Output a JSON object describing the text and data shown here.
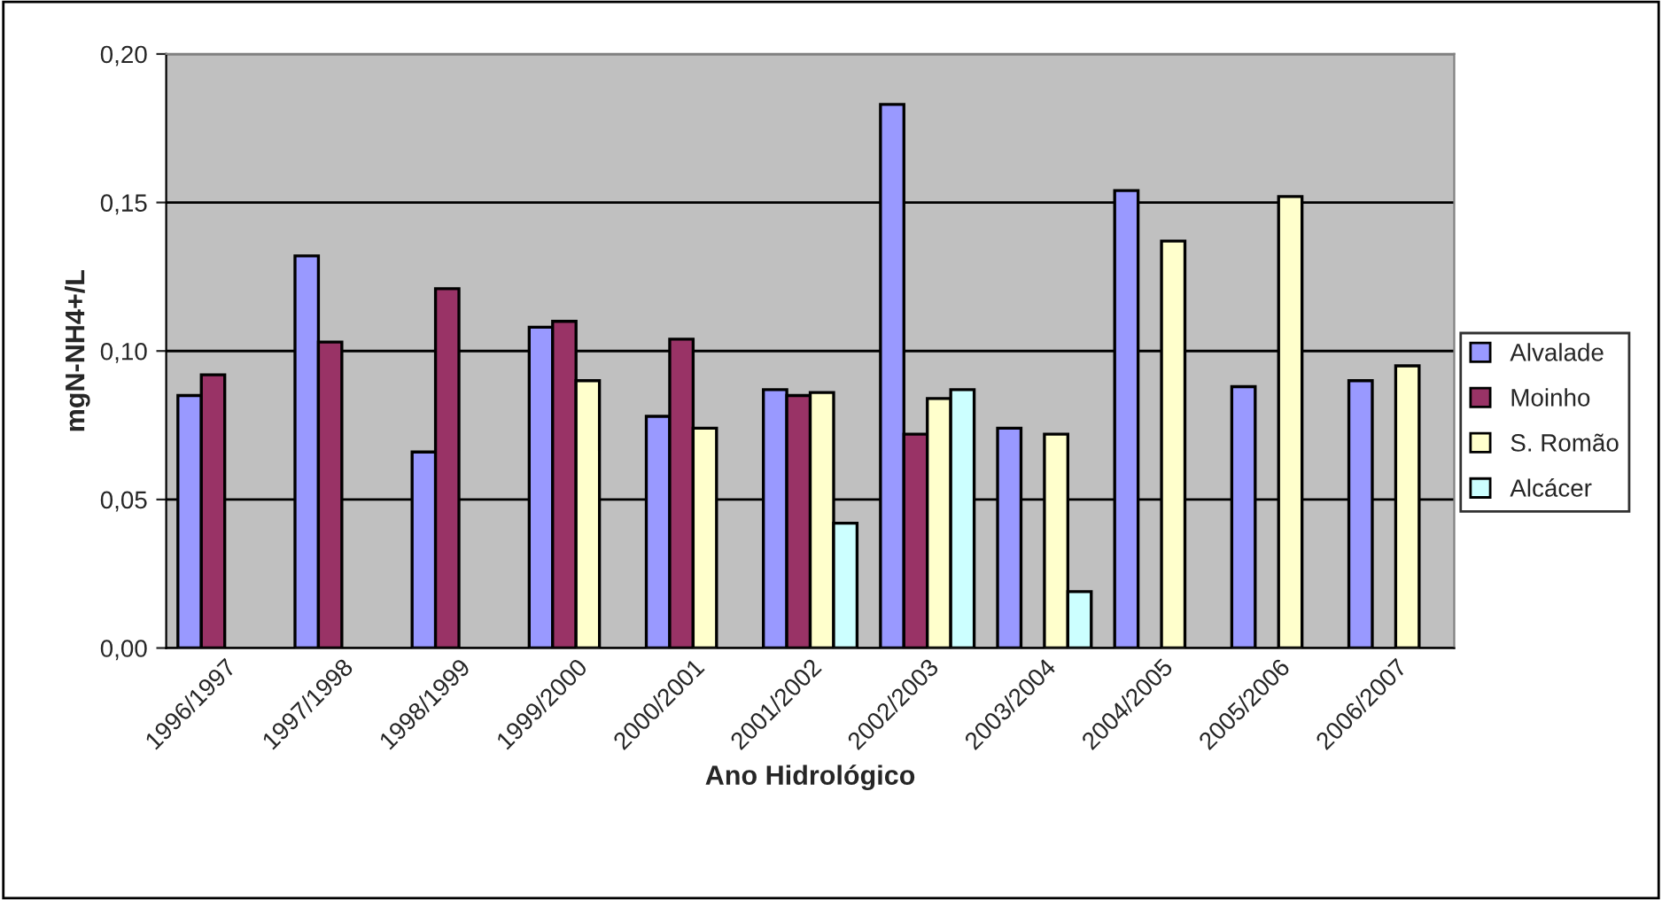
{
  "chart_data": {
    "type": "bar",
    "xlabel": "Ano Hidrológico",
    "ylabel": "mgN-NH4+/L",
    "categories": [
      "1996/1997",
      "1997/1998",
      "1998/1999",
      "1999/2000",
      "2000/2001",
      "2001/2002",
      "2002/2003",
      "2003/2004",
      "2004/2005",
      "2005/2006",
      "2006/2007"
    ],
    "series": [
      {
        "name": "Alvalade",
        "color": "#9999ff",
        "values": [
          0.085,
          0.132,
          0.066,
          0.108,
          0.078,
          0.087,
          0.183,
          0.074,
          0.154,
          0.088,
          0.09
        ]
      },
      {
        "name": "Moinho",
        "color": "#993366",
        "values": [
          0.092,
          0.103,
          0.121,
          0.11,
          0.104,
          0.085,
          0.072,
          null,
          null,
          null,
          null
        ]
      },
      {
        "name": "S. Romão",
        "color": "#ffffcc",
        "values": [
          null,
          null,
          null,
          0.09,
          0.074,
          0.086,
          0.084,
          0.072,
          0.137,
          0.152,
          0.095
        ]
      },
      {
        "name": "Alcácer",
        "color": "#ccffff",
        "values": [
          null,
          null,
          null,
          null,
          null,
          0.042,
          0.087,
          0.019,
          null,
          null,
          null
        ]
      }
    ],
    "ylim": [
      0,
      0.2
    ],
    "yticks": [
      {
        "value": 0,
        "label": "0,00"
      },
      {
        "value": 0.05,
        "label": "0,05"
      },
      {
        "value": 0.1,
        "label": "0,10"
      },
      {
        "value": 0.15,
        "label": "0,15"
      },
      {
        "value": 0.2,
        "label": "0,20"
      }
    ],
    "grid": "y",
    "legend": "right"
  }
}
